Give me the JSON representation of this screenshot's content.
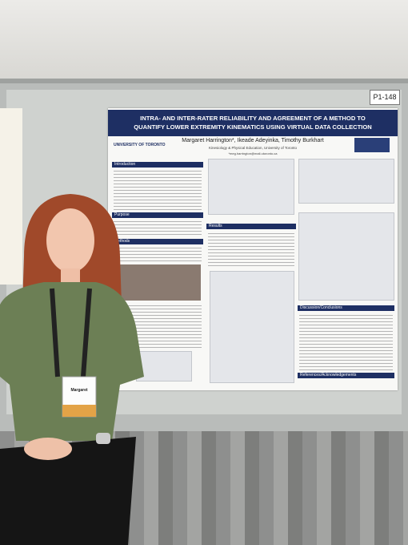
{
  "board_label": "P1-148",
  "poster": {
    "title": "INTRA- AND INTER-RATER RELIABILITY AND AGREEMENT OF A METHOD TO QUANTIFY LOWER EXTREMITY KINEMATICS USING VIRTUAL DATA COLLECTION",
    "institution": "UNIVERSITY OF TORONTO",
    "authors": "Margaret Harrington*, Ikeade Adeyinka, Timothy Burkhart",
    "affiliation": "Kinesiology & Physical Education, University of Toronto",
    "email": "*meg.harrington@mail.utoronto.ca",
    "sections": [
      "Introduction",
      "Purpose",
      "Methods",
      "Results",
      "Discussion/Conclusions",
      "References/Acknowledgements"
    ]
  },
  "badge": {
    "name": "Margaret"
  }
}
